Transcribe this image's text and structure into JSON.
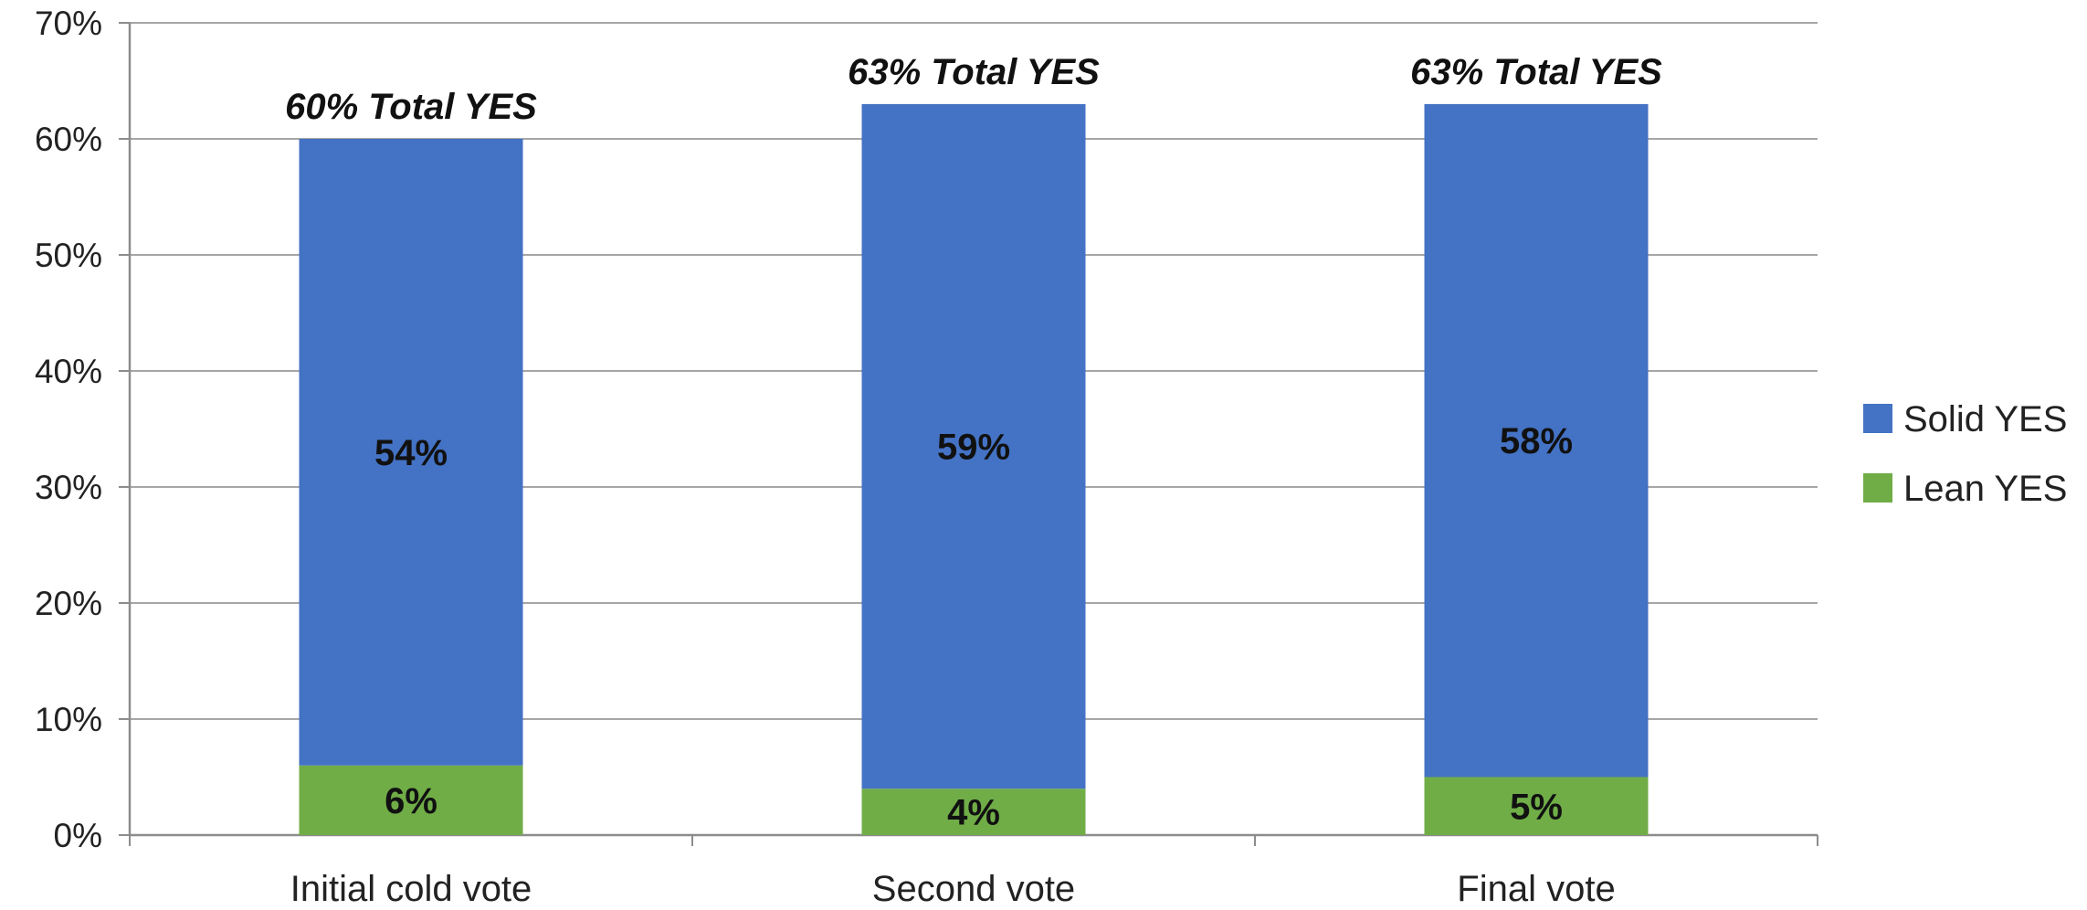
{
  "chart_data": {
    "type": "bar",
    "stacked": true,
    "categories": [
      "Initial cold vote",
      "Second vote",
      "Final vote"
    ],
    "series": [
      {
        "name": "Lean YES",
        "color": "#70ad47",
        "values": [
          6,
          4,
          5
        ],
        "labels": [
          "6%",
          "4%",
          "5%"
        ]
      },
      {
        "name": "Solid YES",
        "color": "#4472c4",
        "values": [
          54,
          59,
          58
        ],
        "labels": [
          "54%",
          "59%",
          "58%"
        ]
      }
    ],
    "totals": [
      "60% Total YES",
      "63% Total YES",
      "63% Total YES"
    ],
    "ylim": [
      0,
      70
    ],
    "yticks": [
      "0%",
      "10%",
      "20%",
      "30%",
      "40%",
      "50%",
      "60%",
      "70%"
    ],
    "grid": true,
    "legend": {
      "position": "right",
      "entries": [
        {
          "name": "Solid YES",
          "color": "#4472c4"
        },
        {
          "name": "Lean YES",
          "color": "#70ad47"
        }
      ]
    },
    "title": "",
    "xlabel": "",
    "ylabel": ""
  }
}
